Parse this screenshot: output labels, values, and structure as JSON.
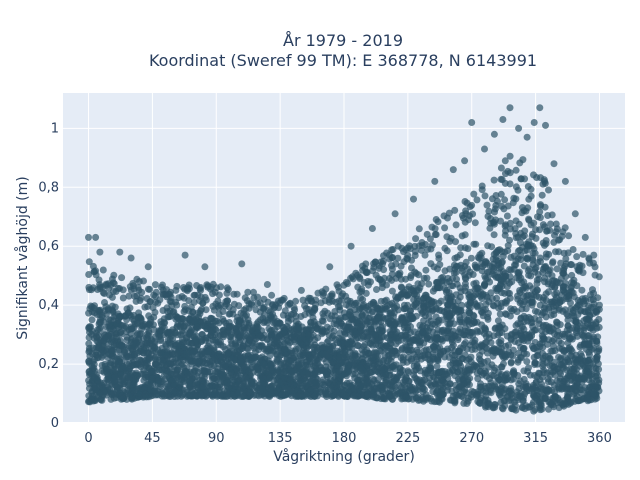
{
  "chart_data": {
    "type": "scatter",
    "title": "År 1979 - 2019",
    "subtitle": "Koordinat (Sweref 99 TM): E 368778, N 6143991",
    "xlabel": "Vågriktning (grader)",
    "ylabel": "Signifikant våghöjd (m)",
    "xlim": [
      -18,
      378
    ],
    "ylim": [
      0,
      1.12
    ],
    "x_ticks": [
      0,
      45,
      90,
      135,
      180,
      225,
      270,
      315,
      360
    ],
    "x_tick_labels": [
      "0",
      "45",
      "90",
      "135",
      "180",
      "225",
      "270",
      "315",
      "360"
    ],
    "y_ticks": [
      0,
      0.2,
      0.4,
      0.6,
      0.8,
      1
    ],
    "y_tick_labels": [
      "0",
      "0,2",
      "0,4",
      "0,6",
      "0,8",
      "1"
    ],
    "grid": true,
    "colors": {
      "marker": "#2e5468",
      "plot_bg": "#e5ecf6",
      "grid": "#ffffff",
      "text": "#2a3f5f"
    },
    "envelope": [
      {
        "x": 0,
        "low": 0.07,
        "high": 0.55
      },
      {
        "x": 15,
        "low": 0.08,
        "high": 0.52
      },
      {
        "x": 30,
        "low": 0.08,
        "high": 0.5
      },
      {
        "x": 45,
        "low": 0.09,
        "high": 0.47
      },
      {
        "x": 60,
        "low": 0.09,
        "high": 0.47
      },
      {
        "x": 75,
        "low": 0.09,
        "high": 0.48
      },
      {
        "x": 90,
        "low": 0.09,
        "high": 0.47
      },
      {
        "x": 105,
        "low": 0.09,
        "high": 0.46
      },
      {
        "x": 120,
        "low": 0.09,
        "high": 0.44
      },
      {
        "x": 135,
        "low": 0.09,
        "high": 0.43
      },
      {
        "x": 150,
        "low": 0.09,
        "high": 0.43
      },
      {
        "x": 165,
        "low": 0.09,
        "high": 0.45
      },
      {
        "x": 180,
        "low": 0.09,
        "high": 0.49
      },
      {
        "x": 195,
        "low": 0.09,
        "high": 0.54
      },
      {
        "x": 210,
        "low": 0.08,
        "high": 0.58
      },
      {
        "x": 225,
        "low": 0.08,
        "high": 0.63
      },
      {
        "x": 240,
        "low": 0.07,
        "high": 0.69
      },
      {
        "x": 255,
        "low": 0.07,
        "high": 0.73
      },
      {
        "x": 270,
        "low": 0.06,
        "high": 0.77
      },
      {
        "x": 285,
        "low": 0.05,
        "high": 0.85
      },
      {
        "x": 300,
        "low": 0.04,
        "high": 0.92
      },
      {
        "x": 315,
        "low": 0.04,
        "high": 0.88
      },
      {
        "x": 330,
        "low": 0.05,
        "high": 0.75
      },
      {
        "x": 345,
        "low": 0.07,
        "high": 0.6
      },
      {
        "x": 360,
        "low": 0.08,
        "high": 0.52
      }
    ],
    "outliers": [
      {
        "x": 0,
        "y": 0.63
      },
      {
        "x": 5,
        "y": 0.63
      },
      {
        "x": 8,
        "y": 0.58
      },
      {
        "x": 22,
        "y": 0.58
      },
      {
        "x": 30,
        "y": 0.56
      },
      {
        "x": 42,
        "y": 0.53
      },
      {
        "x": 68,
        "y": 0.57
      },
      {
        "x": 82,
        "y": 0.53
      },
      {
        "x": 108,
        "y": 0.54
      },
      {
        "x": 126,
        "y": 0.47
      },
      {
        "x": 150,
        "y": 0.45
      },
      {
        "x": 170,
        "y": 0.53
      },
      {
        "x": 185,
        "y": 0.6
      },
      {
        "x": 200,
        "y": 0.66
      },
      {
        "x": 216,
        "y": 0.71
      },
      {
        "x": 229,
        "y": 0.76
      },
      {
        "x": 244,
        "y": 0.82
      },
      {
        "x": 257,
        "y": 0.86
      },
      {
        "x": 265,
        "y": 0.89
      },
      {
        "x": 270,
        "y": 1.02
      },
      {
        "x": 279,
        "y": 0.93
      },
      {
        "x": 286,
        "y": 0.98
      },
      {
        "x": 292,
        "y": 1.03
      },
      {
        "x": 297,
        "y": 1.07
      },
      {
        "x": 303,
        "y": 1.0
      },
      {
        "x": 309,
        "y": 0.97
      },
      {
        "x": 314,
        "y": 1.02
      },
      {
        "x": 318,
        "y": 1.07
      },
      {
        "x": 322,
        "y": 1.01
      },
      {
        "x": 328,
        "y": 0.88
      },
      {
        "x": 336,
        "y": 0.82
      },
      {
        "x": 343,
        "y": 0.71
      },
      {
        "x": 350,
        "y": 0.63
      },
      {
        "x": 356,
        "y": 0.57
      }
    ]
  }
}
